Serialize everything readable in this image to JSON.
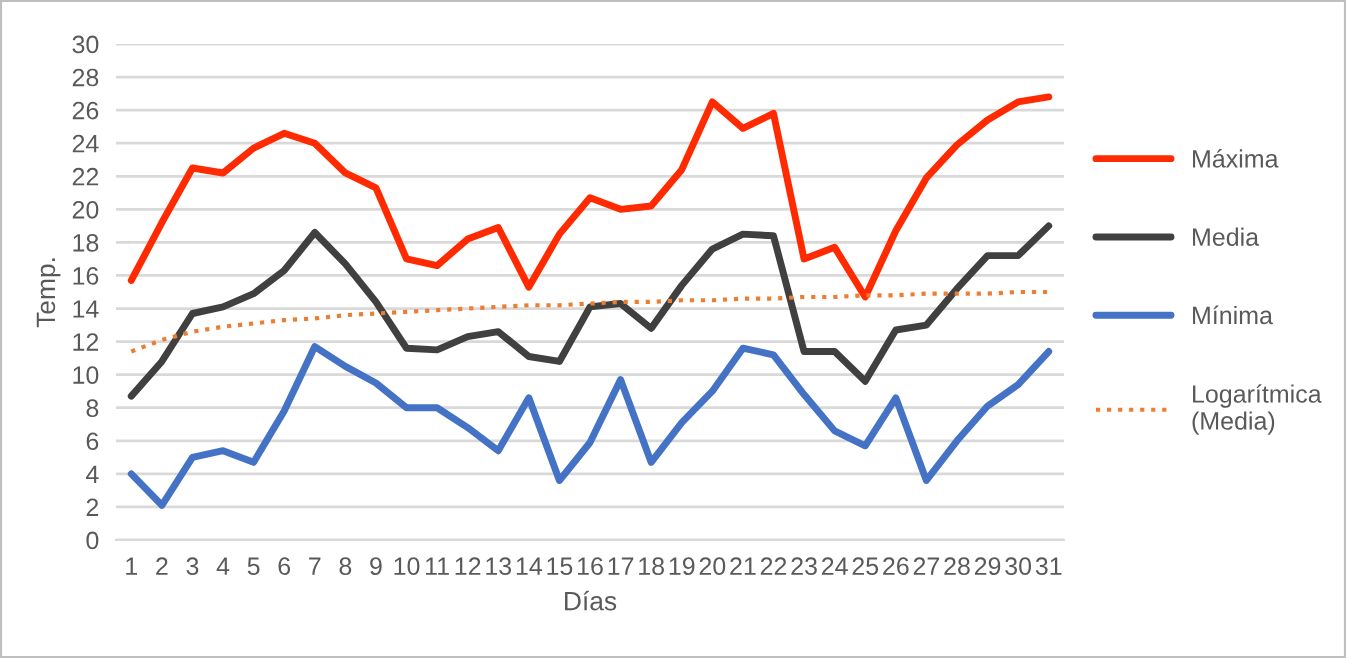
{
  "chart_data": {
    "type": "line",
    "xlabel": "Días",
    "ylabel": "Temp.",
    "categories": [
      "1",
      "2",
      "3",
      "4",
      "5",
      "6",
      "7",
      "8",
      "9",
      "10",
      "11",
      "12",
      "13",
      "14",
      "15",
      "16",
      "17",
      "18",
      "19",
      "20",
      "21",
      "22",
      "23",
      "24",
      "25",
      "26",
      "27",
      "28",
      "29",
      "30",
      "31"
    ],
    "series": [
      {
        "name": "Máxima",
        "color": "#ff2a00",
        "line_style": "solid",
        "values": [
          15.7,
          19.2,
          22.5,
          22.2,
          23.7,
          24.6,
          24.0,
          22.2,
          21.3,
          17.0,
          16.6,
          18.2,
          18.9,
          15.3,
          18.5,
          20.7,
          20.0,
          20.2,
          22.4,
          26.5,
          24.9,
          25.8,
          17.0,
          17.7,
          14.7,
          18.7,
          21.9,
          23.9,
          25.4,
          26.5,
          26.8
        ]
      },
      {
        "name": "Media",
        "color": "#404040",
        "line_style": "solid",
        "values": [
          8.7,
          10.8,
          13.7,
          14.1,
          14.9,
          16.3,
          18.6,
          16.7,
          14.4,
          11.6,
          11.5,
          12.3,
          12.6,
          11.1,
          10.8,
          14.1,
          14.3,
          12.8,
          15.4,
          17.6,
          18.5,
          18.4,
          11.4,
          11.4,
          9.6,
          12.7,
          13.0,
          15.2,
          17.2,
          17.2,
          19.0
        ]
      },
      {
        "name": "Mínima",
        "color": "#4472c4",
        "line_style": "solid",
        "values": [
          4.0,
          2.1,
          5.0,
          5.4,
          4.7,
          7.8,
          11.7,
          10.5,
          9.5,
          8.0,
          8.0,
          6.8,
          5.4,
          8.6,
          3.6,
          5.9,
          9.7,
          4.7,
          7.1,
          9.0,
          11.6,
          11.2,
          8.8,
          6.6,
          5.7,
          8.6,
          3.6,
          6.0,
          8.1,
          9.4,
          11.4
        ]
      },
      {
        "name": "Logarítmica (Media)",
        "color": "#ed7d31",
        "line_style": "dotted",
        "values": [
          11.4,
          12.1,
          12.6,
          12.9,
          13.1,
          13.3,
          13.4,
          13.6,
          13.7,
          13.8,
          13.9,
          14.0,
          14.1,
          14.2,
          14.2,
          14.3,
          14.4,
          14.4,
          14.5,
          14.5,
          14.6,
          14.6,
          14.7,
          14.7,
          14.8,
          14.8,
          14.9,
          14.9,
          14.9,
          15.0,
          15.0
        ]
      }
    ],
    "ylim": [
      0,
      30
    ],
    "yticks": [
      0,
      2,
      4,
      6,
      8,
      10,
      12,
      14,
      16,
      18,
      20,
      22,
      24,
      26,
      28,
      30
    ],
    "grid": "y",
    "legend": "right",
    "marker": "none"
  }
}
